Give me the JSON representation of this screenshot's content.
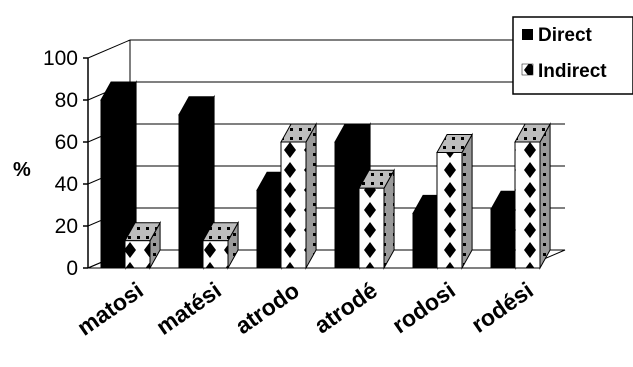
{
  "chart_data": {
    "type": "bar",
    "style": "3d-clustered-column",
    "categories": [
      "matosi",
      "matési",
      "atrodo",
      "atrodé",
      "rodosi",
      "rodési"
    ],
    "series": [
      {
        "name": "Direct",
        "values": [
          80,
          73,
          37,
          60,
          26,
          28
        ],
        "color": "#000000",
        "pattern": "solid"
      },
      {
        "name": "Indirect",
        "values": [
          13,
          13,
          60,
          38,
          55,
          60
        ],
        "color": "#ffffff",
        "pattern": "black-diamonds"
      }
    ],
    "title": "",
    "xlabel": "",
    "ylabel": "%",
    "ylim": [
      0,
      100
    ],
    "yticks": [
      0,
      20,
      40,
      60,
      80,
      100
    ],
    "grid": true,
    "legend_position": "top-right"
  }
}
